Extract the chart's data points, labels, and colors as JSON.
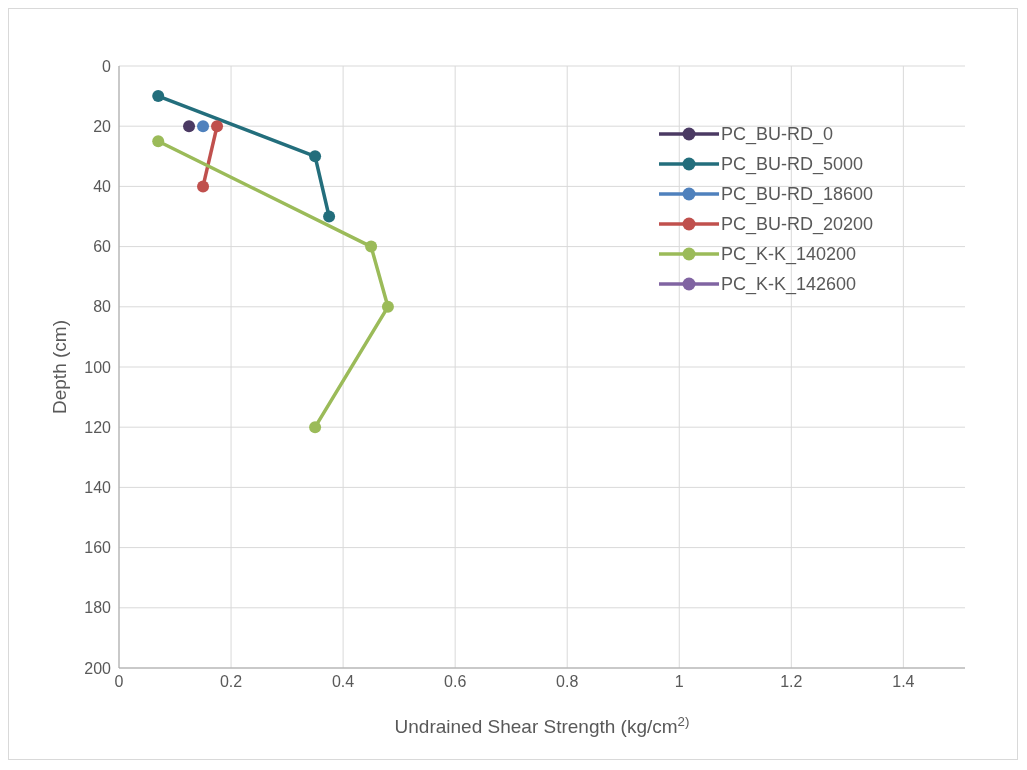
{
  "chart_data": {
    "type": "line",
    "xlabel": "Undrained Shear Strength (kg/cm$^{2)}$",
    "ylabel": "Depth (cm)",
    "xlim": [
      0,
      1.51
    ],
    "xticks": [
      0,
      0.2,
      0.4,
      0.6,
      0.8,
      1,
      1.2,
      1.4
    ],
    "ylim": [
      200,
      0
    ],
    "yticks": [
      0,
      20,
      40,
      60,
      80,
      100,
      120,
      140,
      160,
      180,
      200
    ],
    "grid": true,
    "legend": "right",
    "marker": "circle",
    "line_style": "solid",
    "series": [
      {
        "name": "PC_BU-RD_0",
        "color": "#4b3a63",
        "x": [
          0.125
        ],
        "values": [
          20
        ]
      },
      {
        "name": "PC_BU-RD_5000",
        "color": "#236e7c",
        "x": [
          0.07,
          0.35,
          0.375
        ],
        "values": [
          10,
          30,
          50
        ]
      },
      {
        "name": "PC_BU-RD_18600",
        "color": "#4f81bd",
        "x": [
          0.15
        ],
        "values": [
          20
        ]
      },
      {
        "name": "PC_BU-RD_20200",
        "color": "#c0504d",
        "x": [
          0.175,
          0.15
        ],
        "values": [
          20,
          40
        ]
      },
      {
        "name": "PC_K-K_140200",
        "color": "#9bbb59",
        "x": [
          0.07,
          0.45,
          0.48,
          0.35
        ],
        "values": [
          25,
          60,
          80,
          120
        ]
      },
      {
        "name": "PC_K-K_142600",
        "color": "#8064a2"
      }
    ]
  }
}
